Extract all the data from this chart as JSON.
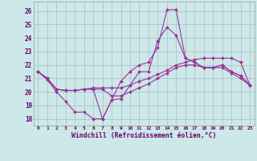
{
  "xlabel": "Windchill (Refroidissement éolien,°C)",
  "bg_color": "#cce8e8",
  "grid_color": "#aabbcc",
  "line_color": "#993399",
  "xlim": [
    -0.5,
    23.5
  ],
  "ylim": [
    17.5,
    26.7
  ],
  "yticks": [
    18,
    19,
    20,
    21,
    22,
    23,
    24,
    25,
    26
  ],
  "xticks": [
    0,
    1,
    2,
    3,
    4,
    5,
    6,
    7,
    8,
    9,
    10,
    11,
    12,
    13,
    14,
    15,
    16,
    17,
    18,
    19,
    20,
    21,
    22,
    23
  ],
  "line1": [
    21.5,
    20.9,
    20.0,
    19.3,
    18.5,
    18.5,
    18.0,
    18.0,
    19.4,
    20.8,
    21.5,
    22.0,
    22.2,
    23.3,
    26.1,
    26.1,
    22.5,
    22.2,
    21.8,
    21.8,
    22.0,
    21.5,
    21.2,
    20.5
  ],
  "line2": [
    21.5,
    21.0,
    20.2,
    20.1,
    20.1,
    20.2,
    20.2,
    18.0,
    19.4,
    19.5,
    20.5,
    21.5,
    21.5,
    23.8,
    24.8,
    24.2,
    22.5,
    22.2,
    21.8,
    21.8,
    22.0,
    21.5,
    21.2,
    20.5
  ],
  "line3": [
    21.5,
    21.0,
    20.2,
    20.1,
    20.1,
    20.2,
    20.3,
    20.3,
    20.3,
    20.3,
    20.5,
    20.8,
    21.0,
    21.3,
    21.6,
    22.0,
    22.2,
    22.4,
    22.5,
    22.5,
    22.5,
    22.5,
    22.2,
    20.5
  ],
  "line4": [
    21.5,
    21.0,
    20.2,
    20.1,
    20.1,
    20.2,
    20.2,
    20.2,
    19.7,
    19.7,
    20.0,
    20.3,
    20.6,
    21.0,
    21.4,
    21.8,
    22.0,
    22.0,
    21.8,
    21.8,
    21.8,
    21.4,
    21.0,
    20.5
  ]
}
